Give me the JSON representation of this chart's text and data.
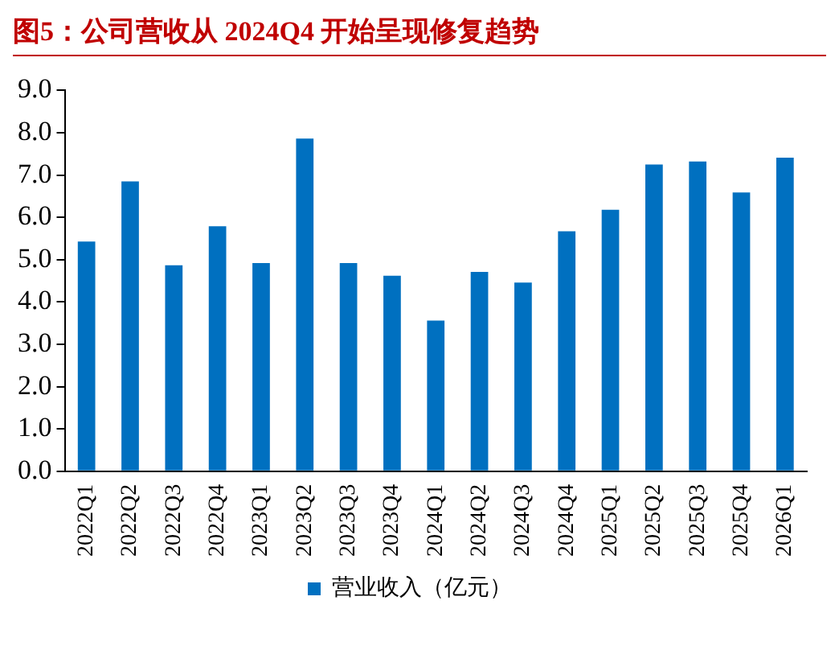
{
  "chart_data": {
    "type": "bar",
    "title": "图5：公司营收从 2024Q4 开始呈现修复趋势",
    "categories": [
      "2022Q1",
      "2022Q2",
      "2022Q3",
      "2022Q4",
      "2023Q1",
      "2023Q2",
      "2023Q3",
      "2023Q4",
      "2024Q1",
      "2024Q2",
      "2024Q3",
      "2024Q4",
      "2025Q1",
      "2025Q2",
      "2025Q3",
      "2025Q4",
      "2026Q1"
    ],
    "series": [
      {
        "name": "营业收入（亿元）",
        "color": "#0070c0",
        "values": [
          5.43,
          6.85,
          4.87,
          5.79,
          4.92,
          7.86,
          4.92,
          4.62,
          3.56,
          4.71,
          4.46,
          5.67,
          6.18,
          7.25,
          7.32,
          6.59,
          7.41
        ]
      }
    ],
    "ylim": [
      0,
      9
    ],
    "yticks": [
      {
        "value": 0,
        "label": "0.0"
      },
      {
        "value": 1,
        "label": "1.0"
      },
      {
        "value": 2,
        "label": "2.0"
      },
      {
        "value": 3,
        "label": "3.0"
      },
      {
        "value": 4,
        "label": "4.0"
      },
      {
        "value": 5,
        "label": "5.0"
      },
      {
        "value": 6,
        "label": "6.0"
      },
      {
        "value": 7,
        "label": "7.0"
      },
      {
        "value": 8,
        "label": "8.0"
      },
      {
        "value": 9,
        "label": "9.0"
      }
    ],
    "grid": false,
    "legend": "bottom"
  }
}
